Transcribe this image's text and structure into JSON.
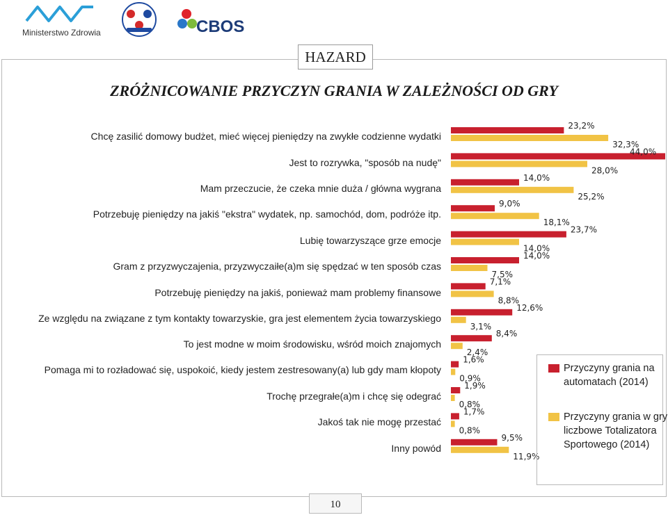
{
  "header": {
    "ministry_name": "Ministerstwo Zdrowia",
    "brand": "CBOS"
  },
  "section_label": "HAZARD",
  "title": "ZRÓŻNICOWANIE PRZYCZYN GRANIA W ZALEŻNOŚCI OD GRY",
  "page_number": "10",
  "colors": {
    "series1": "#c8202e",
    "series2": "#f1c345"
  },
  "chart_data": {
    "type": "bar",
    "orientation": "horizontal",
    "xlim": [
      0,
      44
    ],
    "categories": [
      "Chcę zasilić domowy budżet, mieć więcej pieniędzy na zwykłe codzienne wydatki",
      "Jest to rozrywka, \"sposób na nudę\"",
      "Mam przeczucie, że czeka mnie duża / główna wygrana",
      "Potrzebuję pieniędzy na jakiś \"ekstra\" wydatek, np. samochód, dom, podróże itp.",
      "Lubię towarzyszące grze emocje",
      "Gram z przyzwyczajenia, przyzwyczaiłe(a)m się spędzać w ten sposób czas",
      "Potrzebuję pieniędzy na jakiś, ponieważ mam problemy finansowe",
      "Ze względu na związane z tym kontakty towarzyskie, gra jest  elementem życia towarzyskiego",
      "To jest modne w moim środowisku, wśród moich znajomych",
      "Pomaga mi to rozładować się, uspokoić, kiedy  jestem zestresowany(a) lub gdy mam kłopoty",
      "Trochę przegrałe(a)m i chcę się odegrać",
      "Jakoś tak nie mogę przestać",
      "Inny powód"
    ],
    "series": [
      {
        "name": "Przyczyny grania na automatach (2014)",
        "values": [
          23.2,
          44.0,
          14.0,
          9.0,
          23.7,
          14.0,
          7.1,
          12.6,
          8.4,
          1.6,
          1.9,
          1.7,
          9.5
        ],
        "labels": [
          "23,2%",
          "44,0%",
          "14,0%",
          "9,0%",
          "23,7%",
          "14,0%",
          "7,1%",
          "12,6%",
          "8,4%",
          "1,6%",
          "1,9%",
          "1,7%",
          "9,5%"
        ]
      },
      {
        "name": "Przyczyny grania w gry liczbowe Totalizatora Sportowego (2014)",
        "values": [
          32.3,
          28.0,
          25.2,
          18.1,
          14.0,
          7.5,
          8.8,
          3.1,
          2.4,
          0.9,
          0.8,
          0.8,
          11.9
        ],
        "labels": [
          "32,3%",
          "28,0%",
          "25,2%",
          "18,1%",
          "14,0%",
          "7,5%",
          "8,8%",
          "3,1%",
          "2,4%",
          "0,9%",
          "0,8%",
          "0,8%",
          "11,9%"
        ]
      }
    ]
  },
  "legend": [
    {
      "label": "Przyczyny grania na automatach (2014)",
      "color": "#c8202e"
    },
    {
      "label": "Przyczyny grania w gry liczbowe Totalizatora Sportowego (2014)",
      "color": "#f1c345"
    }
  ]
}
